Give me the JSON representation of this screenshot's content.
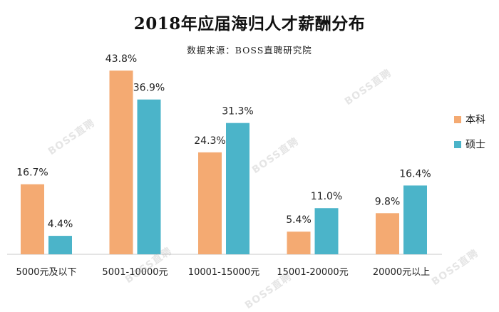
{
  "title": "2018年应届海归人才薪酬分布",
  "subtitle": "数据来源：BOSS直聘研究院",
  "watermark": "BOSS直聘",
  "colors": {
    "本科": "#F4AA72",
    "硕士": "#4BB4C9"
  },
  "chart_data": {
    "type": "bar",
    "categories": [
      "5000元及以下",
      "5001-10000元",
      "10001-15000元",
      "15001-20000元",
      "20000元以上"
    ],
    "series": [
      {
        "name": "本科",
        "values": [
          16.7,
          43.8,
          24.3,
          5.4,
          9.8
        ],
        "labels": [
          "16.7%",
          "43.8%",
          "24.3%",
          "5.4%",
          "9.8%"
        ]
      },
      {
        "name": "硕士",
        "values": [
          4.4,
          36.9,
          31.3,
          11.0,
          16.4
        ],
        "labels": [
          "4.4%",
          "36.9%",
          "31.3%",
          "11.0%",
          "16.4%"
        ]
      }
    ],
    "ylim": [
      0,
      45
    ],
    "grid": false,
    "legend": "right"
  }
}
